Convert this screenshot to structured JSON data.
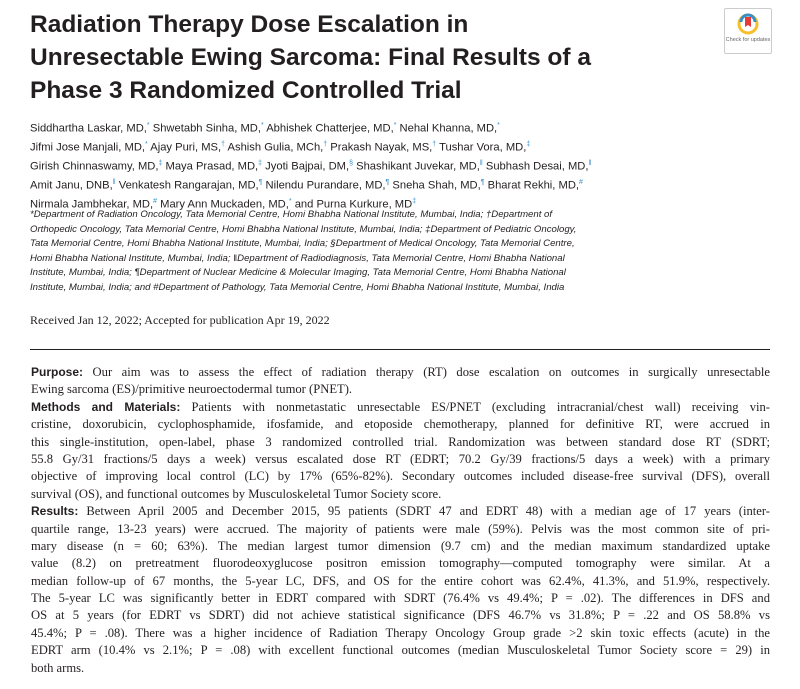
{
  "title_lines": [
    "Radiation Therapy Dose Escalation in",
    "Unresectable Ewing Sarcoma: Final Results of a",
    "Phase 3 Randomized Controlled Trial"
  ],
  "badge": {
    "text": "Check for updates",
    "icon": "check-for-updates-icon",
    "colors": [
      "#e53b3b",
      "#f5c02b",
      "#3a8fc8"
    ]
  },
  "authors_lines": [
    [
      [
        "Siddhartha Laskar, MD,",
        "*"
      ],
      [
        "Shwetabh Sinha, MD,",
        "*"
      ],
      [
        "Abhishek Chatterjee, MD,",
        "*"
      ],
      [
        "Nehal Khanna, MD,",
        "*"
      ]
    ],
    [
      [
        "Jifmi Jose Manjali, MD,",
        "*"
      ],
      [
        "Ajay Puri, MS,",
        "†"
      ],
      [
        "Ashish Gulia, MCh,",
        "†"
      ],
      [
        "Prakash Nayak, MS,",
        "†"
      ],
      [
        "Tushar Vora, MD,",
        "‡"
      ]
    ],
    [
      [
        "Girish Chinnaswamy, MD,",
        "‡"
      ],
      [
        "Maya Prasad, MD,",
        "‡"
      ],
      [
        "Jyoti Bajpai, DM,",
        "§"
      ],
      [
        "Shashikant Juvekar, MD,",
        "‖"
      ],
      [
        "Subhash Desai, MD,",
        "‖"
      ]
    ],
    [
      [
        "Amit Janu, DNB,",
        "‖"
      ],
      [
        "Venkatesh Rangarajan, MD,",
        "¶"
      ],
      [
        "Nilendu Purandare, MD,",
        "¶"
      ],
      [
        "Sneha Shah, MD,",
        "¶"
      ],
      [
        "Bharat Rekhi, MD,",
        "#"
      ]
    ],
    [
      [
        "Nirmala Jambhekar, MD,",
        "#"
      ],
      [
        "Mary Ann Muckaden, MD,",
        "*"
      ],
      [
        "and Purna Kurkure, MD",
        "‡"
      ]
    ]
  ],
  "affiliation_lines": [
    "*Department of Radiation Oncology, Tata Memorial Centre, Homi Bhabha National Institute, Mumbai, India; †Department of",
    "Orthopedic Oncology, Tata Memorial Centre, Homi Bhabha National Institute, Mumbai, India; ‡Department of Pediatric Oncology,",
    "Tata Memorial Centre, Homi Bhabha National Institute, Mumbai, India; §Department of Medical Oncology, Tata Memorial Centre,",
    "Homi Bhabha National Institute, Mumbai, India; ‖Department of Radiodiagnosis, Tata Memorial Centre, Homi Bhabha National",
    "Institute, Mumbai, India; ¶Department of Nuclear Medicine & Molecular Imaging, Tata Memorial Centre, Homi Bhabha National",
    "Institute, Mumbai, India; and #Department of Pathology, Tata Memorial Centre, Homi Bhabha National Institute, Mumbai, India"
  ],
  "received": "Received Jan 12, 2022; Accepted for publication Apr 19, 2022",
  "abstract": [
    {
      "label": "Purpose:",
      "lines": [
        "Our aim was to assess the effect of radiation therapy (RT) dose escalation on outcomes in surgically unresectable",
        "Ewing sarcoma (ES)/primitive neuroectodermal tumor (PNET)."
      ]
    },
    {
      "label": "Methods and Materials:",
      "lines": [
        "Patients with nonmetastatic unresectable ES/PNET (excluding intracranial/chest wall) receiving vin-",
        "cristine, doxorubicin, cyclophosphamide, ifosfamide, and etoposide chemotherapy, planned for definitive RT, were accrued in",
        "this single-institution, open-label, phase 3 randomized controlled trial. Randomization was between standard dose RT (SDRT;",
        "55.8 Gy/31 fractions/5 days a week) versus escalated dose RT (EDRT; 70.2 Gy/39 fractions/5 days a week) with a primary",
        "objective of improving local control (LC) by 17% (65%-82%). Secondary outcomes included disease-free survival (DFS), overall",
        "survival (OS), and functional outcomes by Musculoskeletal Tumor Society score."
      ]
    },
    {
      "label": "Results:",
      "lines": [
        "Between April 2005 and December 2015, 95 patients (SDRT 47 and EDRT 48) with a median age of 17 years (inter-",
        "quartile range, 13-23 years) were accrued. The majority of patients were male (59%). Pelvis was the most common site of pri-",
        "mary disease (n = 60; 63%). The median largest tumor dimension (9.7 cm) and the median maximum standardized uptake",
        "value (8.2) on pretreatment fluorodeoxyglucose positron emission tomography—computed tomography were similar. At a",
        "median follow-up of 67 months, the 5-year LC, DFS, and OS for the entire cohort was 62.4%, 41.3%, and 51.9%, respectively.",
        "The 5-year LC was significantly better in EDRT compared with SDRT (76.4% vs 49.4%; P = .02). The differences in DFS and",
        "OS at 5 years (for EDRT vs SDRT) did not achieve statistical significance (DFS 46.7% vs 31.8%; P = .22 and OS 58.8% vs",
        "45.4%; P = .08). There was a higher incidence of Radiation Therapy Oncology Group grade >2 skin toxic effects (acute) in the",
        "EDRT arm (10.4% vs 2.1%; P = .08) with excellent functional outcomes (median Musculoskeletal Tumor Society score = 29) in",
        "both arms."
      ]
    }
  ]
}
